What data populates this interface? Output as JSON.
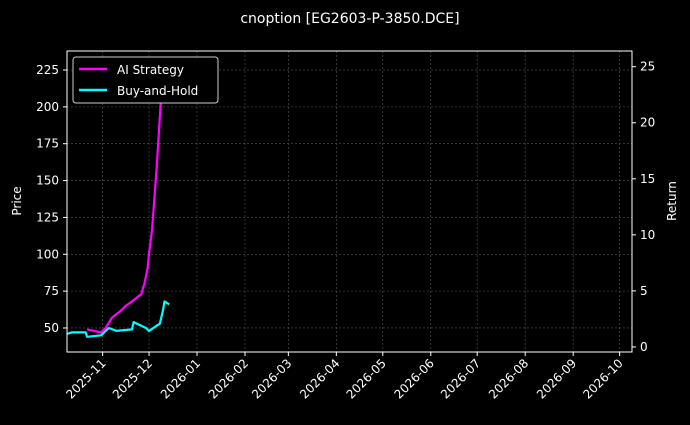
{
  "chart_data": {
    "type": "line",
    "title": "cnoption [EG2603-P-3850.DCE]",
    "xlabel": "",
    "ylabel": "Price",
    "y2label": "Return",
    "xlim": [
      "2025-10-09",
      "2026-10-09"
    ],
    "ylim": [
      33.7,
      237.9
    ],
    "y2lim": [
      -0.45,
      26.4
    ],
    "x_ticks": [
      "2025-11",
      "2025-12",
      "2026-01",
      "2026-02",
      "2026-03",
      "2026-04",
      "2026-05",
      "2026-06",
      "2026-07",
      "2026-08",
      "2026-09",
      "2026-10"
    ],
    "y_ticks": [
      50,
      75,
      100,
      125,
      150,
      175,
      200,
      225
    ],
    "y2_ticks": [
      0,
      5,
      10,
      15,
      20,
      25
    ],
    "grid": true,
    "legend_position": "top-left",
    "series": [
      {
        "name": "AI Strategy",
        "color": "#ff00ff",
        "x": [
          "2025-10-22",
          "2025-10-31",
          "2025-11-03",
          "2025-11-07",
          "2025-11-12",
          "2025-11-16",
          "2025-11-20",
          "2025-11-26",
          "2025-11-28",
          "2025-11-30",
          "2025-12-01",
          "2025-12-03",
          "2025-12-06",
          "2025-12-09",
          "2025-12-11"
        ],
        "y": [
          49,
          47,
          50,
          57,
          61,
          65,
          68,
          73,
          80,
          90,
          100,
          117,
          160,
          210,
          225
        ]
      },
      {
        "name": "Buy-and-Hold",
        "color": "#00ffff",
        "x": [
          "2025-10-09",
          "2025-10-12",
          "2025-10-21",
          "2025-10-22",
          "2025-10-31",
          "2025-11-05",
          "2025-11-10",
          "2025-11-20",
          "2025-11-21",
          "2025-11-29",
          "2025-12-01",
          "2025-12-08",
          "2025-12-10",
          "2025-12-11",
          "2025-12-14"
        ],
        "y": [
          46,
          47,
          47,
          44,
          45,
          50,
          48,
          49,
          54,
          50,
          48,
          53,
          62,
          68,
          66
        ]
      }
    ]
  }
}
